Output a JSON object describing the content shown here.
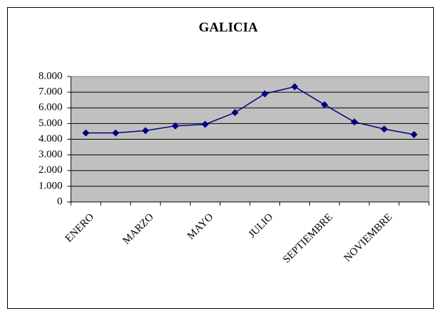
{
  "chart_data": {
    "type": "line",
    "title": "GALICIA",
    "categories": [
      "ENERO",
      null,
      "MARZO",
      null,
      "MAYO",
      null,
      "JULIO",
      null,
      "SEPTIEMBRE",
      null,
      "NOVIEMBRE",
      null
    ],
    "series": [
      {
        "name": "GALICIA",
        "color": "#000080",
        "values": [
          4400,
          4400,
          4550,
          4850,
          4950,
          5700,
          6900,
          7350,
          6200,
          5100,
          4650,
          4300
        ]
      }
    ],
    "ylim": [
      0,
      8000
    ],
    "yticks": [
      0,
      {
        "value": 1000,
        "label": "1.000"
      },
      {
        "value": 2000,
        "label": "2.000"
      },
      {
        "value": 3000,
        "label": "3.000"
      },
      {
        "value": 4000,
        "label": "4.000"
      },
      {
        "value": 5000,
        "label": "5.000"
      },
      {
        "value": 6000,
        "label": "6.000"
      },
      {
        "value": 7000,
        "label": "7.000"
      },
      {
        "value": 8000,
        "label": "8.000"
      }
    ],
    "grid": true,
    "plot_background": "#c0c0c0"
  }
}
